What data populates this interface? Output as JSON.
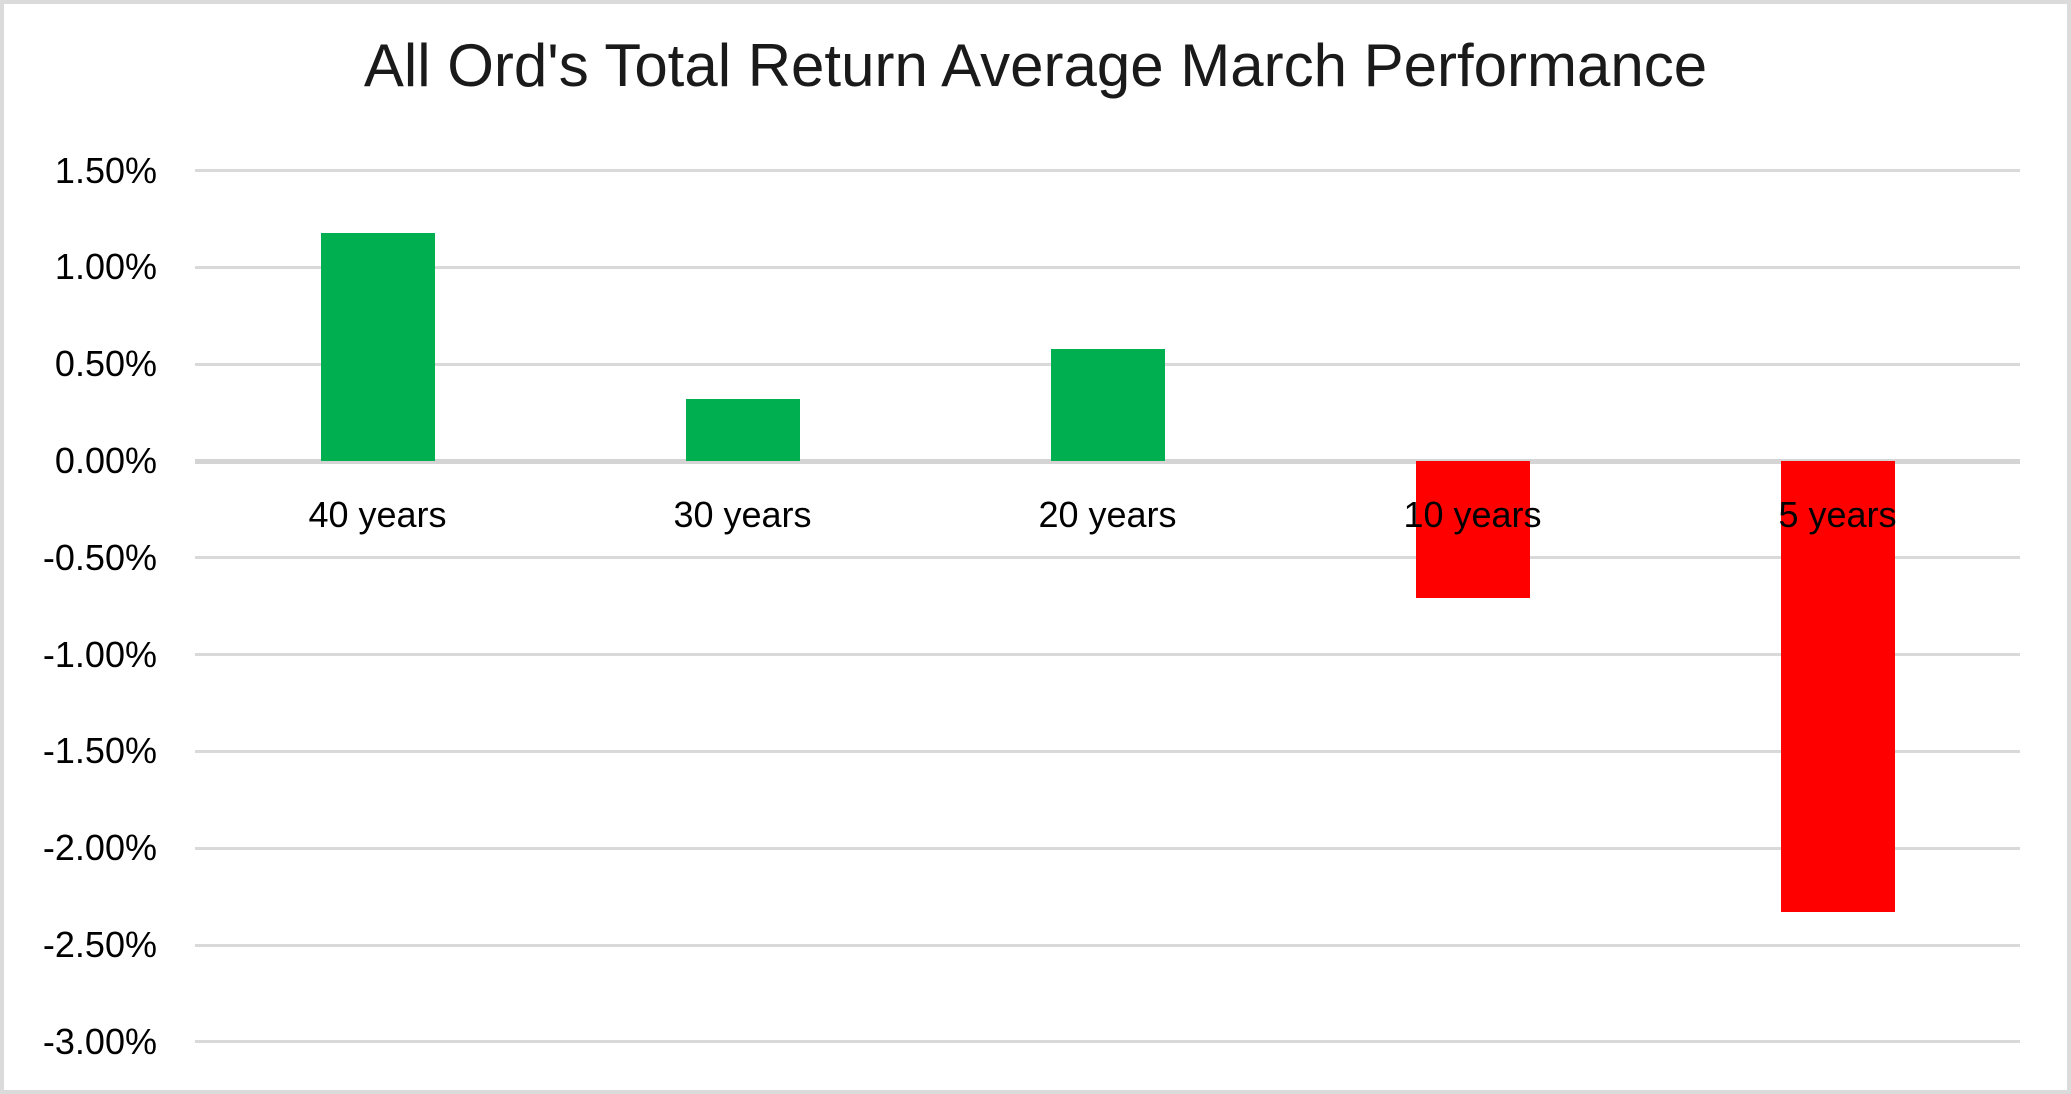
{
  "chart_data": {
    "type": "bar",
    "title": "All Ord's Total Return Average March Performance",
    "categories": [
      "40 years",
      "30 years",
      "20 years",
      "10 years",
      "5 years"
    ],
    "values": [
      1.18,
      0.32,
      0.58,
      -0.71,
      -2.33
    ],
    "value_unit": "percent",
    "xlabel": "",
    "ylabel": "",
    "ylim": [
      -3.0,
      1.5
    ],
    "ytick_step": 0.5,
    "yticks": [
      {
        "label": "1.50%",
        "value": 1.5
      },
      {
        "label": "1.00%",
        "value": 1.0
      },
      {
        "label": "0.50%",
        "value": 0.5
      },
      {
        "label": "0.00%",
        "value": 0.0
      },
      {
        "label": "-0.50%",
        "value": -0.5
      },
      {
        "label": "-1.00%",
        "value": -1.0
      },
      {
        "label": "-1.50%",
        "value": -1.5
      },
      {
        "label": "-2.00%",
        "value": -2.0
      },
      {
        "label": "-2.50%",
        "value": -2.5
      },
      {
        "label": "-3.00%",
        "value": -3.0
      }
    ],
    "legend": "none",
    "grid": "horizontal",
    "colors": {
      "positive_bar": "#00B050",
      "negative_bar": "#FF0000",
      "gridline": "#D9D9D9",
      "zero_line": "#D4D4D4",
      "title_text": "#1A1A1A",
      "axis_text": "#000000",
      "canvas_border": "#DBDBDB",
      "background": "#FFFFFF"
    }
  }
}
